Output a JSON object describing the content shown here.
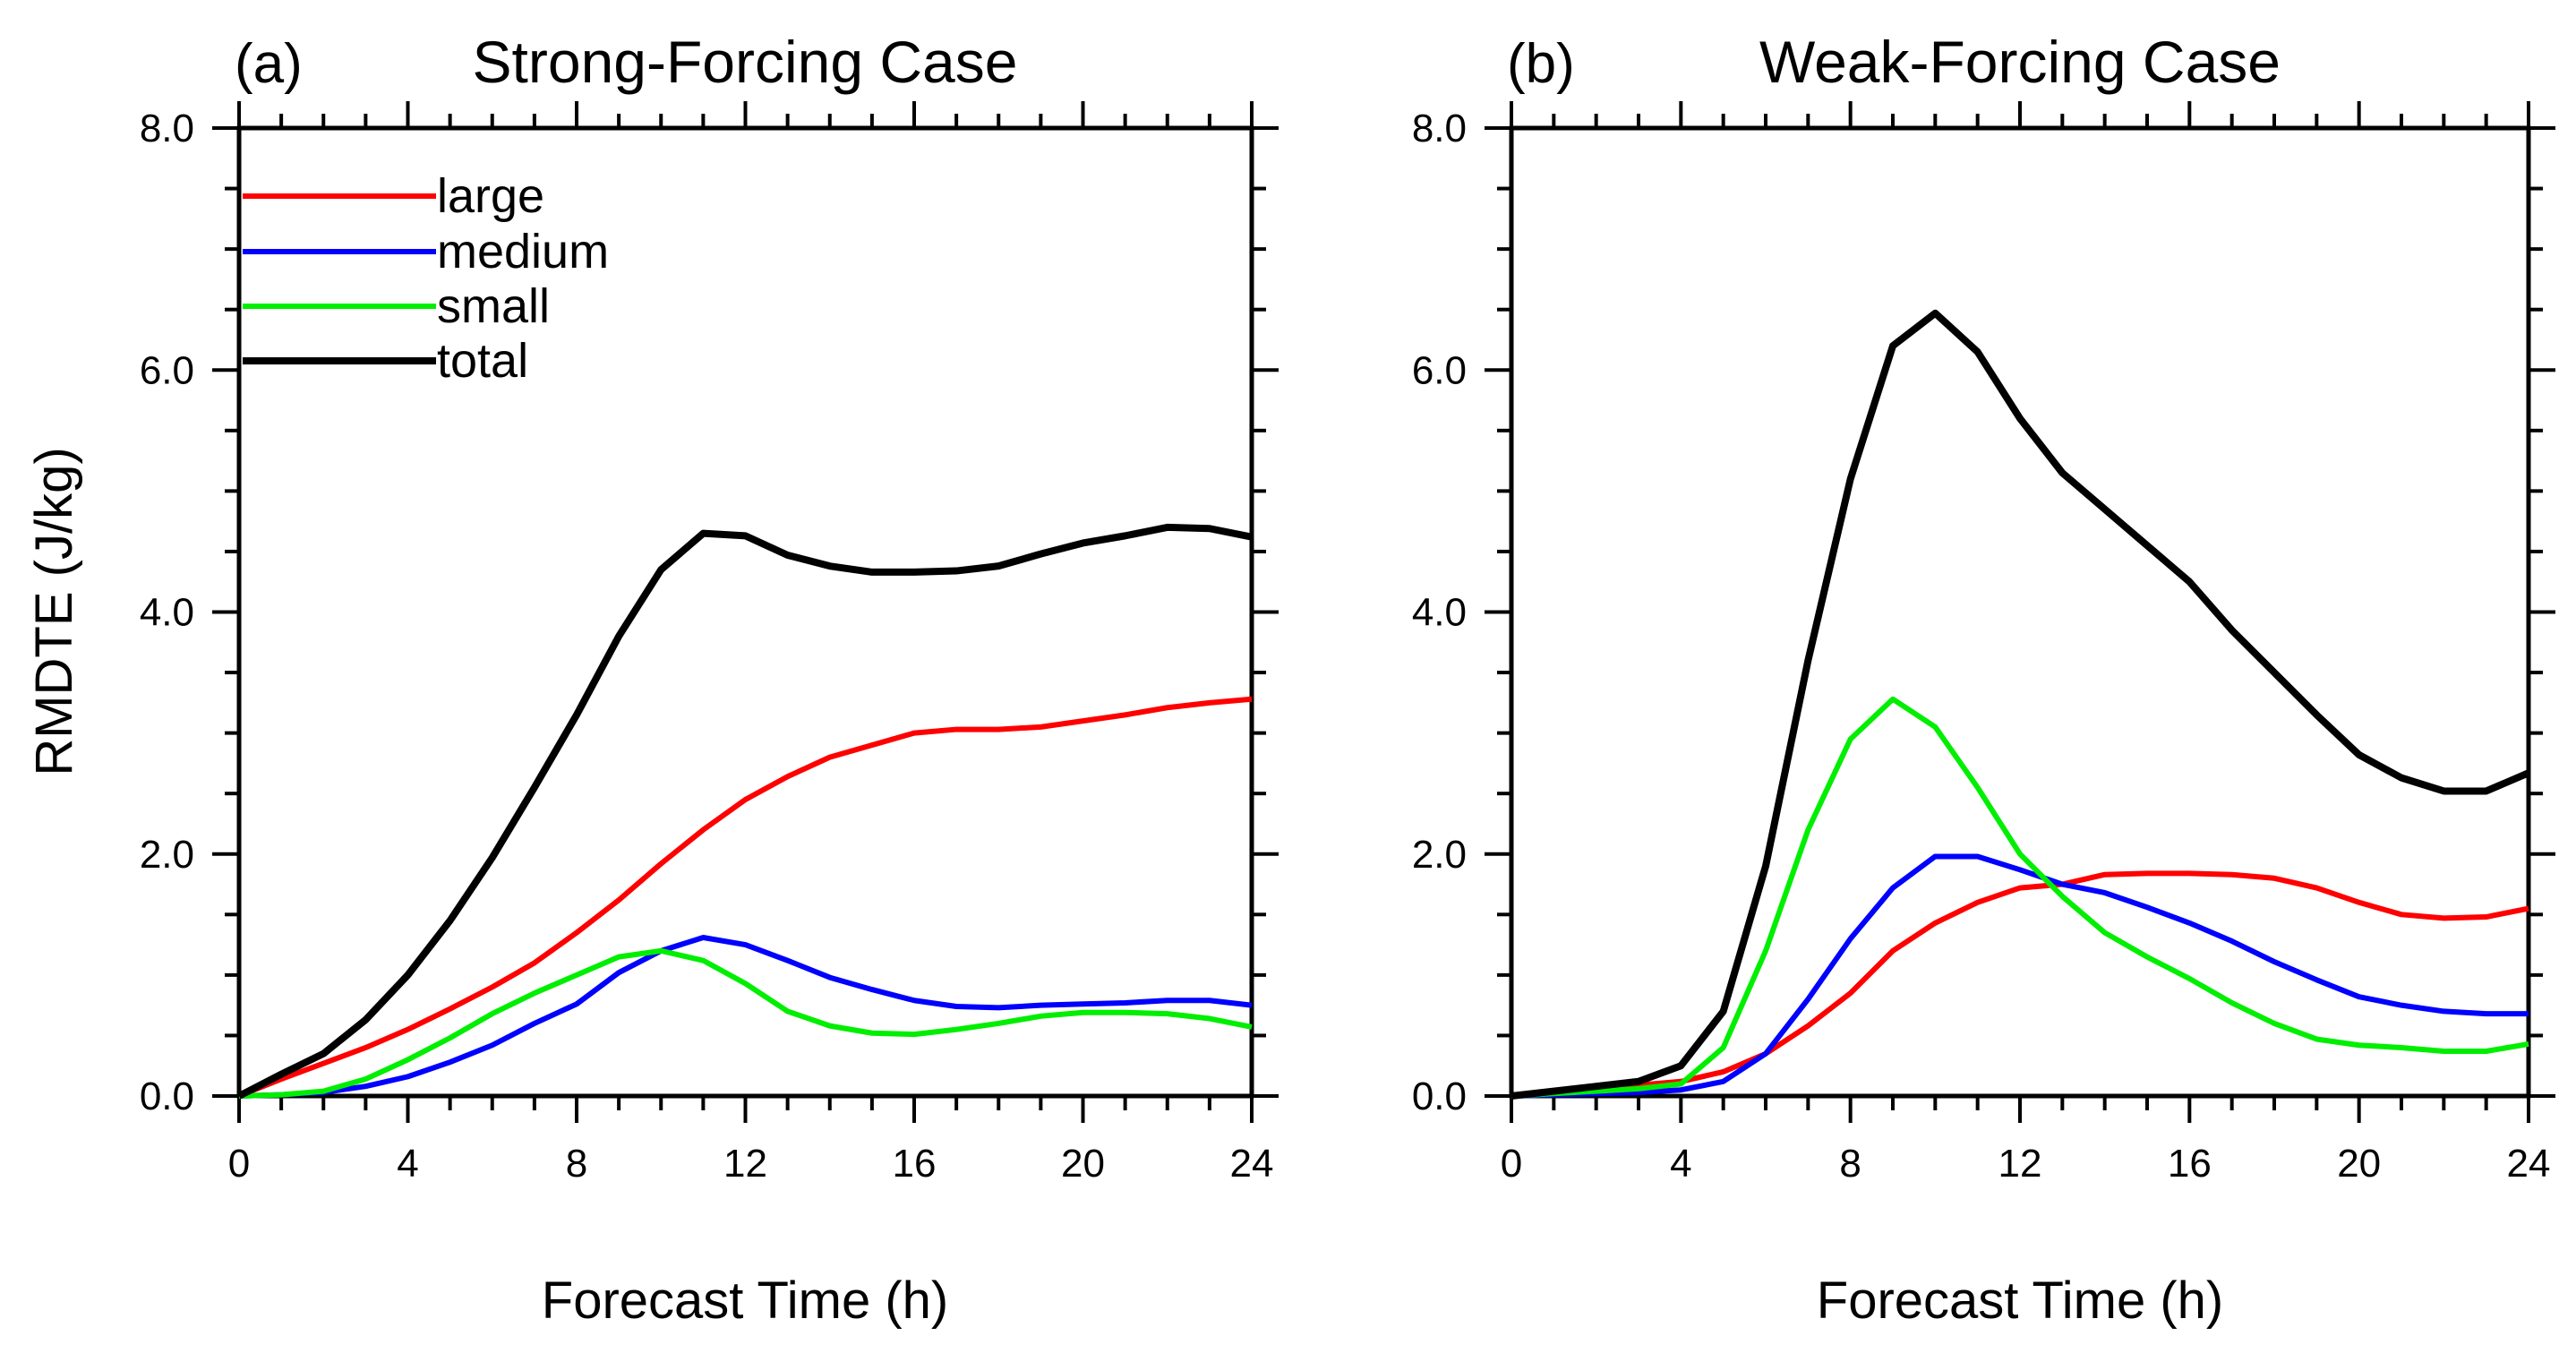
{
  "chart_data": [
    {
      "type": "line",
      "panel_label": "(a)",
      "title": "Strong-Forcing Case",
      "xlabel": "Forecast Time (h)",
      "ylabel": "RMDTE (J/kg)",
      "xlim": [
        0,
        24
      ],
      "ylim": [
        0,
        8
      ],
      "xticks": [
        0,
        4,
        8,
        12,
        16,
        20,
        24
      ],
      "xtick_labels": [
        "0",
        "4",
        "8",
        "12",
        "16",
        "20",
        "24"
      ],
      "yticks": [
        0,
        2,
        4,
        6,
        8
      ],
      "ytick_labels": [
        "0.0",
        "2.0",
        "4.0",
        "6.0",
        "8.0"
      ],
      "grid": false,
      "legend": {
        "placement": "top-left",
        "entries": [
          "large",
          "medium",
          "small",
          "total"
        ]
      },
      "x": [
        0,
        1,
        2,
        3,
        4,
        5,
        6,
        7,
        8,
        9,
        10,
        11,
        12,
        13,
        14,
        15,
        16,
        17,
        18,
        19,
        20,
        21,
        22,
        23,
        24
      ],
      "series": [
        {
          "name": "large",
          "color": "#ff0000",
          "values": [
            0,
            0.14,
            0.27,
            0.4,
            0.55,
            0.72,
            0.9,
            1.1,
            1.35,
            1.62,
            1.92,
            2.2,
            2.45,
            2.64,
            2.8,
            2.9,
            3.0,
            3.03,
            3.03,
            3.05,
            3.1,
            3.15,
            3.21,
            3.25,
            3.28
          ]
        },
        {
          "name": "medium",
          "color": "#0000ff",
          "values": [
            0,
            0.01,
            0.03,
            0.08,
            0.16,
            0.28,
            0.42,
            0.6,
            0.76,
            1.02,
            1.2,
            1.31,
            1.25,
            1.12,
            0.98,
            0.88,
            0.79,
            0.74,
            0.73,
            0.75,
            0.76,
            0.77,
            0.79,
            0.79,
            0.75
          ]
        },
        {
          "name": "small",
          "color": "#00ee00",
          "values": [
            0,
            0.01,
            0.04,
            0.14,
            0.3,
            0.48,
            0.68,
            0.85,
            1.0,
            1.15,
            1.2,
            1.12,
            0.93,
            0.7,
            0.58,
            0.52,
            0.51,
            0.55,
            0.6,
            0.66,
            0.69,
            0.69,
            0.68,
            0.64,
            0.57
          ]
        },
        {
          "name": "total",
          "color": "#000000",
          "values": [
            0,
            0.18,
            0.35,
            0.63,
            1.0,
            1.45,
            1.97,
            2.55,
            3.15,
            3.8,
            4.35,
            4.65,
            4.63,
            4.47,
            4.38,
            4.33,
            4.33,
            4.34,
            4.38,
            4.48,
            4.57,
            4.63,
            4.7,
            4.69,
            4.62
          ]
        }
      ]
    },
    {
      "type": "line",
      "panel_label": "(b)",
      "title": "Weak-Forcing Case",
      "xlabel": "Forecast Time (h)",
      "ylabel": "",
      "xlim": [
        0,
        24
      ],
      "ylim": [
        0,
        8
      ],
      "xticks": [
        0,
        4,
        8,
        12,
        16,
        20,
        24
      ],
      "xtick_labels": [
        "0",
        "4",
        "8",
        "12",
        "16",
        "20",
        "24"
      ],
      "yticks": [
        0,
        2,
        4,
        6,
        8
      ],
      "ytick_labels": [
        "0.0",
        "2.0",
        "4.0",
        "6.0",
        "8.0"
      ],
      "grid": false,
      "x": [
        0,
        1,
        2,
        3,
        4,
        5,
        6,
        7,
        8,
        9,
        10,
        11,
        12,
        13,
        14,
        15,
        16,
        17,
        18,
        19,
        20,
        21,
        22,
        23,
        24
      ],
      "series": [
        {
          "name": "large",
          "color": "#ff0000",
          "values": [
            0,
            0.03,
            0.06,
            0.09,
            0.12,
            0.2,
            0.35,
            0.58,
            0.85,
            1.2,
            1.43,
            1.6,
            1.72,
            1.75,
            1.83,
            1.84,
            1.84,
            1.83,
            1.8,
            1.72,
            1.6,
            1.5,
            1.47,
            1.48,
            1.55
          ]
        },
        {
          "name": "medium",
          "color": "#0000ff",
          "values": [
            0,
            0.01,
            0.02,
            0.03,
            0.05,
            0.12,
            0.35,
            0.8,
            1.3,
            1.72,
            1.98,
            1.98,
            1.87,
            1.75,
            1.68,
            1.56,
            1.43,
            1.28,
            1.11,
            0.96,
            0.82,
            0.75,
            0.7,
            0.68,
            0.68
          ]
        },
        {
          "name": "small",
          "color": "#00ee00",
          "values": [
            0,
            0.02,
            0.04,
            0.06,
            0.1,
            0.4,
            1.2,
            2.2,
            2.95,
            3.28,
            3.05,
            2.55,
            2.0,
            1.65,
            1.35,
            1.15,
            0.97,
            0.77,
            0.6,
            0.47,
            0.42,
            0.4,
            0.37,
            0.37,
            0.43
          ]
        },
        {
          "name": "total",
          "color": "#000000",
          "values": [
            0,
            0.04,
            0.08,
            0.12,
            0.25,
            0.7,
            1.9,
            3.6,
            5.1,
            6.2,
            6.47,
            6.15,
            5.6,
            5.15,
            4.85,
            4.55,
            4.25,
            3.85,
            3.5,
            3.15,
            2.82,
            2.63,
            2.52,
            2.52,
            2.67
          ]
        }
      ]
    }
  ]
}
